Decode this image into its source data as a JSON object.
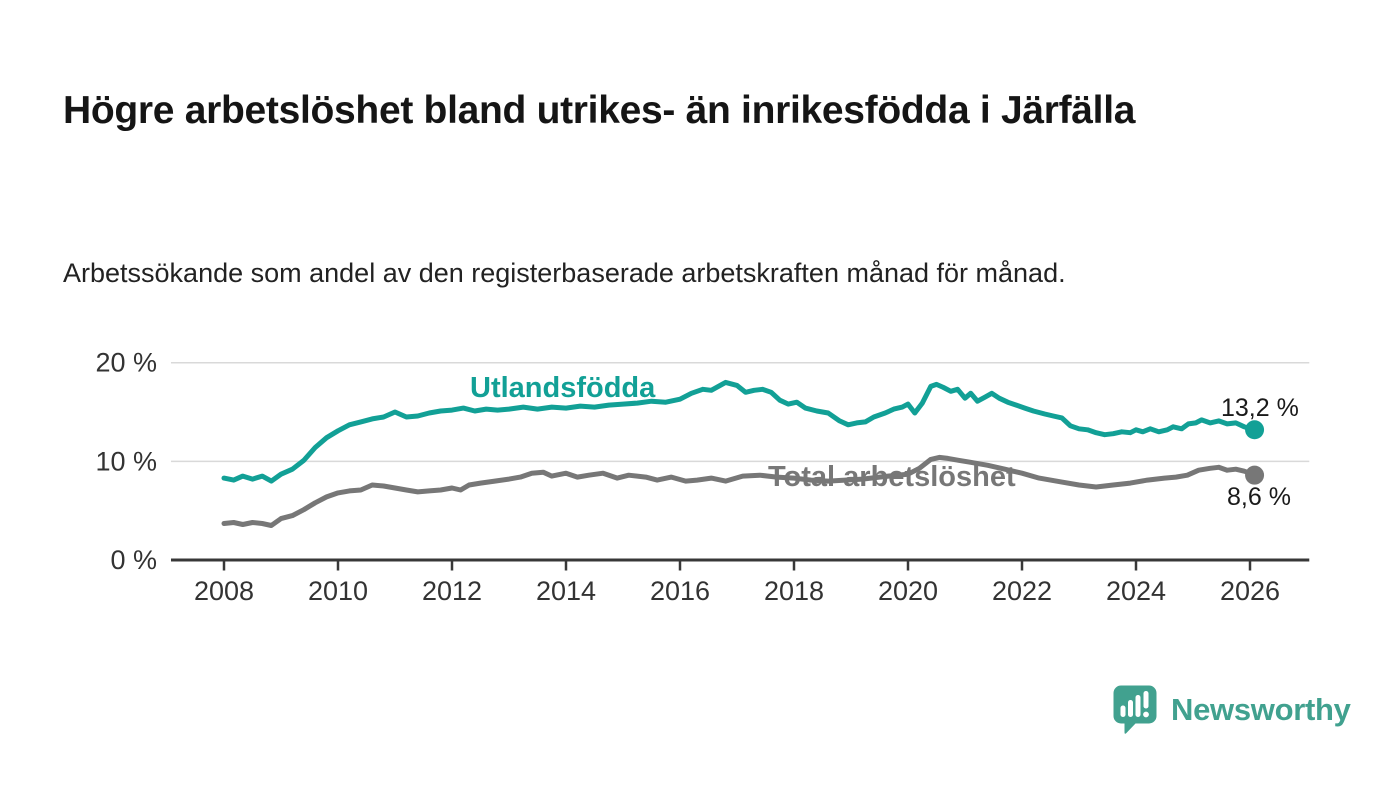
{
  "page": {
    "title": "Högre arbetslöshet bland utrikes- än inrikesfödda i Järfälla",
    "subtitle": "Arbetssökande som andel av den registerbaserade arbetskraften månad för månad."
  },
  "branding": {
    "name": "Newsworthy",
    "color": "#41a18f",
    "icon": "bar-chart-speech-bubble"
  },
  "colors": {
    "series_foreign_born": "#12a096",
    "series_total": "#777777",
    "axis": "#383838",
    "grid": "#d9d9d9",
    "value_label_text": "#1a1a1a"
  },
  "chart_data": {
    "type": "line",
    "title": "Högre arbetslöshet bland utrikes- än inrikesfödda i Järfälla",
    "subtitle": "Arbetssökande som andel av den registerbaserade arbetskraften månad för månad.",
    "xlabel": "",
    "ylabel": "",
    "grid": "horizontal",
    "xlim": [
      2007.07,
      2027.04
    ],
    "ylim": [
      0,
      21.5
    ],
    "x_ticks": [
      2008,
      2010,
      2012,
      2014,
      2016,
      2018,
      2020,
      2022,
      2024,
      2026
    ],
    "y_ticks": [
      {
        "label": "0 %",
        "value": 0
      },
      {
        "label": "10 %",
        "value": 10
      },
      {
        "label": "20 %",
        "value": 20
      }
    ],
    "series": [
      {
        "name": "Utlandsfödda",
        "color": "#12a096",
        "end_label": "13,2 %",
        "end_value": 13.2,
        "points": [
          [
            2008.0,
            8.3
          ],
          [
            2008.17,
            8.1
          ],
          [
            2008.33,
            8.5
          ],
          [
            2008.5,
            8.2
          ],
          [
            2008.67,
            8.5
          ],
          [
            2008.83,
            8.0
          ],
          [
            2009.0,
            8.7
          ],
          [
            2009.2,
            9.2
          ],
          [
            2009.4,
            10.1
          ],
          [
            2009.6,
            11.4
          ],
          [
            2009.8,
            12.4
          ],
          [
            2010.0,
            13.1
          ],
          [
            2010.2,
            13.7
          ],
          [
            2010.4,
            14.0
          ],
          [
            2010.6,
            14.3
          ],
          [
            2010.8,
            14.5
          ],
          [
            2011.0,
            15.0
          ],
          [
            2011.2,
            14.5
          ],
          [
            2011.4,
            14.6
          ],
          [
            2011.6,
            14.9
          ],
          [
            2011.8,
            15.1
          ],
          [
            2012.0,
            15.2
          ],
          [
            2012.2,
            15.4
          ],
          [
            2012.4,
            15.1
          ],
          [
            2012.6,
            15.3
          ],
          [
            2012.8,
            15.2
          ],
          [
            2013.0,
            15.3
          ],
          [
            2013.25,
            15.5
          ],
          [
            2013.5,
            15.3
          ],
          [
            2013.75,
            15.5
          ],
          [
            2014.0,
            15.4
          ],
          [
            2014.25,
            15.6
          ],
          [
            2014.5,
            15.5
          ],
          [
            2014.75,
            15.7
          ],
          [
            2015.0,
            15.8
          ],
          [
            2015.25,
            15.9
          ],
          [
            2015.5,
            16.1
          ],
          [
            2015.75,
            16.0
          ],
          [
            2016.0,
            16.3
          ],
          [
            2016.2,
            16.9
          ],
          [
            2016.4,
            17.3
          ],
          [
            2016.55,
            17.2
          ],
          [
            2016.8,
            18.0
          ],
          [
            2017.0,
            17.7
          ],
          [
            2017.15,
            17.0
          ],
          [
            2017.3,
            17.2
          ],
          [
            2017.45,
            17.3
          ],
          [
            2017.6,
            17.0
          ],
          [
            2017.75,
            16.2
          ],
          [
            2017.9,
            15.8
          ],
          [
            2018.05,
            16.0
          ],
          [
            2018.2,
            15.4
          ],
          [
            2018.4,
            15.1
          ],
          [
            2018.6,
            14.9
          ],
          [
            2018.8,
            14.1
          ],
          [
            2018.95,
            13.7
          ],
          [
            2019.1,
            13.9
          ],
          [
            2019.25,
            14.0
          ],
          [
            2019.4,
            14.5
          ],
          [
            2019.6,
            14.9
          ],
          [
            2019.75,
            15.3
          ],
          [
            2019.9,
            15.5
          ],
          [
            2020.0,
            15.8
          ],
          [
            2020.12,
            14.9
          ],
          [
            2020.25,
            15.9
          ],
          [
            2020.4,
            17.6
          ],
          [
            2020.5,
            17.8
          ],
          [
            2020.62,
            17.5
          ],
          [
            2020.75,
            17.1
          ],
          [
            2020.87,
            17.3
          ],
          [
            2021.0,
            16.4
          ],
          [
            2021.1,
            16.9
          ],
          [
            2021.22,
            16.1
          ],
          [
            2021.35,
            16.5
          ],
          [
            2021.47,
            16.9
          ],
          [
            2021.6,
            16.4
          ],
          [
            2021.75,
            16.0
          ],
          [
            2021.9,
            15.7
          ],
          [
            2022.05,
            15.4
          ],
          [
            2022.2,
            15.1
          ],
          [
            2022.4,
            14.8
          ],
          [
            2022.55,
            14.6
          ],
          [
            2022.7,
            14.4
          ],
          [
            2022.85,
            13.6
          ],
          [
            2023.0,
            13.3
          ],
          [
            2023.15,
            13.2
          ],
          [
            2023.3,
            12.9
          ],
          [
            2023.45,
            12.7
          ],
          [
            2023.6,
            12.8
          ],
          [
            2023.75,
            13.0
          ],
          [
            2023.9,
            12.9
          ],
          [
            2024.0,
            13.2
          ],
          [
            2024.12,
            13.0
          ],
          [
            2024.25,
            13.3
          ],
          [
            2024.4,
            13.0
          ],
          [
            2024.55,
            13.2
          ],
          [
            2024.65,
            13.5
          ],
          [
            2024.8,
            13.3
          ],
          [
            2024.92,
            13.8
          ],
          [
            2025.05,
            13.9
          ],
          [
            2025.15,
            14.2
          ],
          [
            2025.3,
            13.9
          ],
          [
            2025.45,
            14.1
          ],
          [
            2025.6,
            13.8
          ],
          [
            2025.75,
            13.9
          ],
          [
            2025.9,
            13.5
          ],
          [
            2026.0,
            13.3
          ],
          [
            2026.08,
            13.2
          ]
        ]
      },
      {
        "name": "Total arbetslöshet",
        "color": "#777777",
        "end_label": "8,6 %",
        "end_value": 8.6,
        "points": [
          [
            2008.0,
            3.7
          ],
          [
            2008.17,
            3.8
          ],
          [
            2008.33,
            3.6
          ],
          [
            2008.5,
            3.8
          ],
          [
            2008.67,
            3.7
          ],
          [
            2008.83,
            3.5
          ],
          [
            2009.0,
            4.2
          ],
          [
            2009.2,
            4.5
          ],
          [
            2009.4,
            5.1
          ],
          [
            2009.6,
            5.8
          ],
          [
            2009.8,
            6.4
          ],
          [
            2010.0,
            6.8
          ],
          [
            2010.2,
            7.0
          ],
          [
            2010.4,
            7.1
          ],
          [
            2010.6,
            7.6
          ],
          [
            2010.8,
            7.5
          ],
          [
            2011.0,
            7.3
          ],
          [
            2011.2,
            7.1
          ],
          [
            2011.4,
            6.9
          ],
          [
            2011.6,
            7.0
          ],
          [
            2011.8,
            7.1
          ],
          [
            2012.0,
            7.3
          ],
          [
            2012.15,
            7.1
          ],
          [
            2012.3,
            7.6
          ],
          [
            2012.5,
            7.8
          ],
          [
            2012.75,
            8.0
          ],
          [
            2013.0,
            8.2
          ],
          [
            2013.2,
            8.4
          ],
          [
            2013.4,
            8.8
          ],
          [
            2013.6,
            8.9
          ],
          [
            2013.75,
            8.5
          ],
          [
            2014.0,
            8.8
          ],
          [
            2014.2,
            8.4
          ],
          [
            2014.4,
            8.6
          ],
          [
            2014.65,
            8.8
          ],
          [
            2014.9,
            8.3
          ],
          [
            2015.1,
            8.6
          ],
          [
            2015.4,
            8.4
          ],
          [
            2015.6,
            8.1
          ],
          [
            2015.85,
            8.4
          ],
          [
            2016.1,
            8.0
          ],
          [
            2016.3,
            8.1
          ],
          [
            2016.55,
            8.3
          ],
          [
            2016.8,
            8.0
          ],
          [
            2017.1,
            8.5
          ],
          [
            2017.4,
            8.6
          ],
          [
            2017.7,
            8.4
          ],
          [
            2018.0,
            8.3
          ],
          [
            2018.3,
            8.1
          ],
          [
            2018.6,
            8.0
          ],
          [
            2018.9,
            8.1
          ],
          [
            2019.2,
            8.2
          ],
          [
            2019.5,
            8.4
          ],
          [
            2019.8,
            8.6
          ],
          [
            2020.0,
            8.7
          ],
          [
            2020.2,
            9.3
          ],
          [
            2020.4,
            10.2
          ],
          [
            2020.55,
            10.4
          ],
          [
            2020.7,
            10.3
          ],
          [
            2020.9,
            10.1
          ],
          [
            2021.1,
            9.9
          ],
          [
            2021.4,
            9.6
          ],
          [
            2021.7,
            9.2
          ],
          [
            2022.0,
            8.8
          ],
          [
            2022.3,
            8.3
          ],
          [
            2022.7,
            7.9
          ],
          [
            2023.0,
            7.6
          ],
          [
            2023.3,
            7.4
          ],
          [
            2023.6,
            7.6
          ],
          [
            2023.9,
            7.8
          ],
          [
            2024.2,
            8.1
          ],
          [
            2024.5,
            8.3
          ],
          [
            2024.7,
            8.4
          ],
          [
            2024.9,
            8.6
          ],
          [
            2025.1,
            9.1
          ],
          [
            2025.3,
            9.3
          ],
          [
            2025.45,
            9.4
          ],
          [
            2025.6,
            9.1
          ],
          [
            2025.75,
            9.2
          ],
          [
            2025.9,
            9.0
          ],
          [
            2026.0,
            8.8
          ],
          [
            2026.08,
            8.6
          ]
        ]
      }
    ]
  }
}
